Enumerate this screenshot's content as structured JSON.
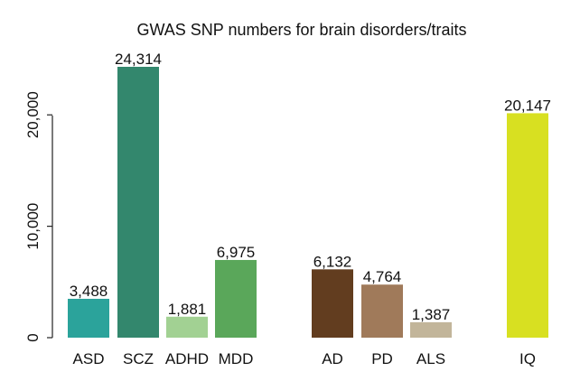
{
  "chart_data": {
    "type": "bar",
    "title": "GWAS SNP numbers for brain disorders/traits",
    "xlabel": "",
    "ylabel": "",
    "ylim": [
      0,
      24314
    ],
    "yticks": [
      0,
      10000,
      20000
    ],
    "ytick_labels": [
      "0",
      "10,000",
      "20,000"
    ],
    "grid": false,
    "legend": "none",
    "categories": [
      "ASD",
      "SCZ",
      "ADHD",
      "MDD",
      "AD",
      "PD",
      "ALS",
      "IQ"
    ],
    "values": [
      3488,
      24314,
      1881,
      6975,
      6132,
      4764,
      1387,
      20147
    ],
    "value_labels": [
      "3,488",
      "24,314",
      "1,881",
      "6,975",
      "6,132",
      "4,764",
      "1,387",
      "20,147"
    ],
    "colors": [
      "#2ba39b",
      "#33876d",
      "#a2d193",
      "#5aa75a",
      "#623d1f",
      "#a07a5a",
      "#c2b59a",
      "#d8e021"
    ]
  }
}
